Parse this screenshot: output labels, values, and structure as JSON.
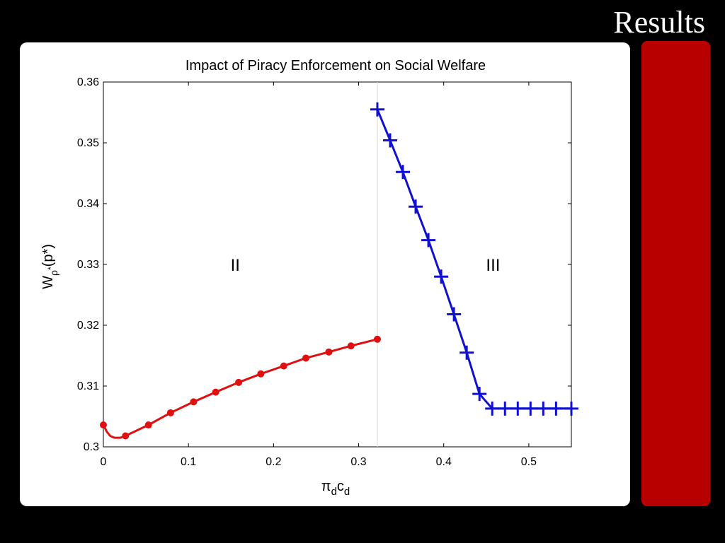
{
  "slide": {
    "title": "Results",
    "accent_color": "#b80000"
  },
  "chart_data": {
    "type": "line",
    "title": "Impact of Piracy Enforcement on Social Welfare",
    "xlabel": {
      "base": "π",
      "sub1": "d",
      "mid": "c",
      "sub2": "d"
    },
    "ylabel": {
      "base": "W",
      "sub": "ρ",
      "subsup": "*",
      "tail": "(p*)"
    },
    "xlim": [
      0,
      0.55
    ],
    "ylim": [
      0.3,
      0.36
    ],
    "xticks": [
      0,
      0.1,
      0.2,
      0.3,
      0.4,
      0.5
    ],
    "xtick_labels": [
      "0",
      "0.1",
      "0.2",
      "0.3",
      "0.4",
      "0.5"
    ],
    "yticks": [
      0.3,
      0.31,
      0.32,
      0.33,
      0.34,
      0.35,
      0.36
    ],
    "ytick_labels": [
      "0.3",
      "0.31",
      "0.32",
      "0.33",
      "0.34",
      "0.35",
      "0.36"
    ],
    "divider_x": 0.322,
    "region_labels": [
      {
        "text": "II",
        "x": 0.155,
        "y": 0.33
      },
      {
        "text": "III",
        "x": 0.458,
        "y": 0.33
      }
    ],
    "series": [
      {
        "color": "#e01010",
        "marker": "circle",
        "curve": [
          [
            0.0,
            0.3036
          ],
          [
            0.004,
            0.3025
          ],
          [
            0.008,
            0.3018
          ],
          [
            0.013,
            0.3015
          ],
          [
            0.02,
            0.3015
          ],
          [
            0.026,
            0.3018
          ]
        ],
        "x": [
          0.0,
          0.026,
          0.053,
          0.079,
          0.106,
          0.132,
          0.159,
          0.185,
          0.212,
          0.238,
          0.265,
          0.291,
          0.322
        ],
        "y": [
          0.3036,
          0.3018,
          0.3036,
          0.3056,
          0.3074,
          0.309,
          0.3106,
          0.312,
          0.3133,
          0.3146,
          0.3156,
          0.3166,
          0.3177
        ]
      },
      {
        "color": "#1010d0",
        "marker": "plus",
        "x": [
          0.322,
          0.337,
          0.352,
          0.367,
          0.382,
          0.397,
          0.412,
          0.427,
          0.442,
          0.457,
          0.472,
          0.487,
          0.502,
          0.517,
          0.532,
          0.55
        ],
        "y": [
          0.3555,
          0.3504,
          0.3452,
          0.3395,
          0.334,
          0.328,
          0.3218,
          0.3155,
          0.3087,
          0.3063,
          0.3063,
          0.3063,
          0.3063,
          0.3063,
          0.3063,
          0.3063
        ]
      }
    ]
  }
}
